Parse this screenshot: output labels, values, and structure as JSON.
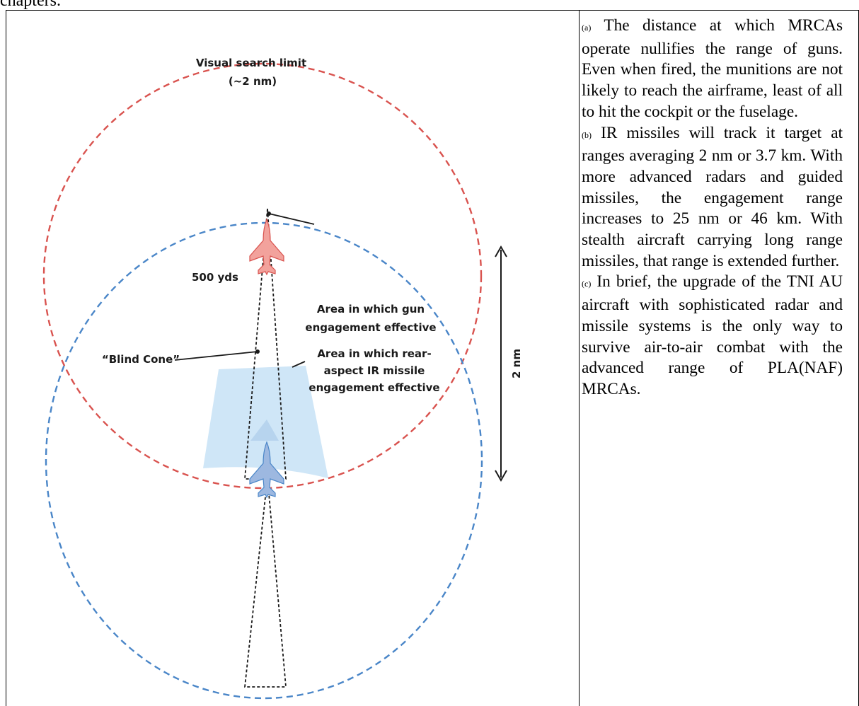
{
  "page": {
    "top_fragment": "chapters."
  },
  "figure": {
    "labels": {
      "visual_search_line1": "Visual search limit",
      "visual_search_line2": "(~2 nm)",
      "yds": "500 yds",
      "gun_line1": "Area in which gun",
      "gun_line2": "engagement effective",
      "ir_line1": "Area in which rear-",
      "ir_line2": "aspect IR missile",
      "ir_line3": "engagement effective",
      "blind_cone": "“Blind Cone”",
      "distance": "2 nm"
    },
    "colors": {
      "red_circle": "#d9534f",
      "blue_circle": "#4a86c8",
      "red_jet": "#f2a29c",
      "blue_jet": "#9db8e0",
      "zone_fill": "#cfe6f7"
    }
  },
  "text": {
    "paragraphs": [
      {
        "marker": "(a)",
        "body": "The distance at which MRCAs operate nullifies the range of guns. Even when fired, the munitions are not likely to reach the airframe, least of all to hit the cockpit or the fuselage."
      },
      {
        "marker": "(b)",
        "body": "IR missiles will track it target at ranges averaging 2 nm or 3.7 km. With more advanced radars and guided missiles, the engagement range increases to 25 nm or 46 km. With stealth aircraft carrying long range missiles, that range is extended further."
      },
      {
        "marker": "(c)",
        "body": "In brief, the upgrade of the TNI AU aircraft with sophisticated radar and missile systems is the only way to survive air-to-air combat with the advanced range of PLA(NAF) MRCAs."
      }
    ]
  }
}
